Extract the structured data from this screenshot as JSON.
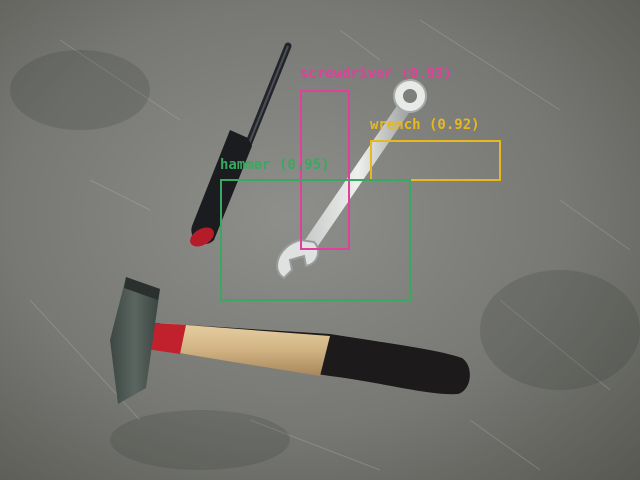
{
  "detections": [
    {
      "label": "screwdriver (0.93)",
      "color": "#e0409a"
    },
    {
      "label": "wrench (0.92)",
      "color": "#e8b820"
    },
    {
      "label": "hammer (0.95)",
      "color": "#3aa860"
    }
  ]
}
